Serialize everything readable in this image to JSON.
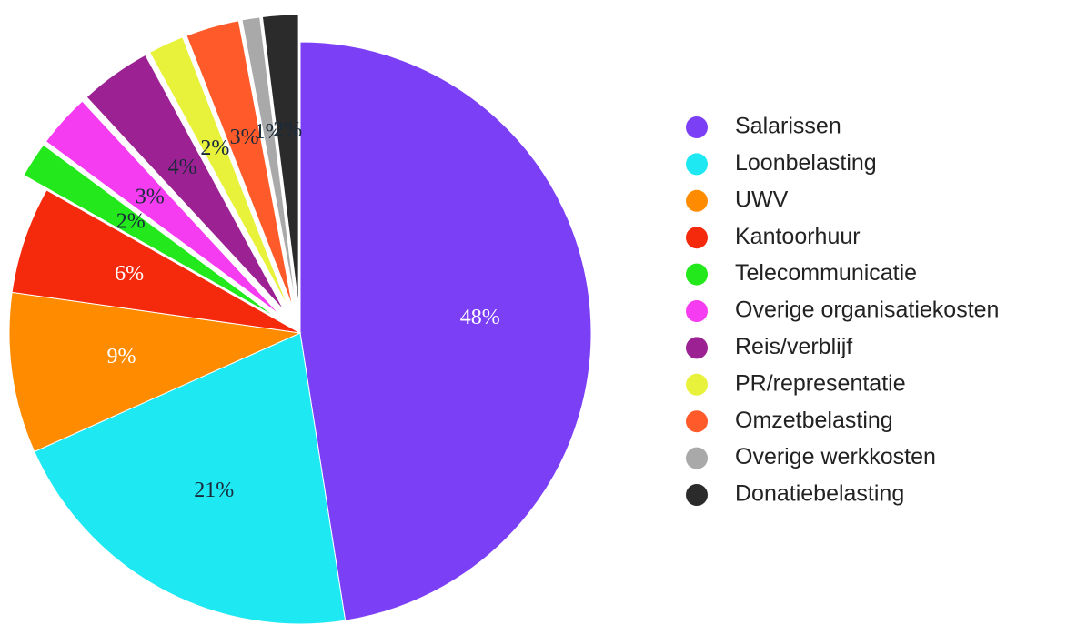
{
  "chart_data": {
    "type": "pie",
    "categories": [
      "Salarissen",
      "Loonbelasting",
      "UWV",
      "Kantoorhuur",
      "Telecommunicatie",
      "Overige organisatiekosten",
      "Reis/verblijf",
      "PR/representatie",
      "Omzetbelasting",
      "Overige werkkosten",
      "Donatiebelasting"
    ],
    "values": [
      48,
      21,
      9,
      6,
      2,
      3,
      4,
      2,
      3,
      1,
      2
    ],
    "value_labels": [
      "48%",
      "21%",
      "9%",
      "6%",
      "2%",
      "3%",
      "4%",
      "2%",
      "3%",
      "1%",
      "2%"
    ],
    "colors": [
      "#7b3ff5",
      "#1ee8f2",
      "#ff8c00",
      "#f5290b",
      "#23e81b",
      "#f53cf0",
      "#9c2192",
      "#e8f23b",
      "#ff5a2a",
      "#a9a9a9",
      "#2b2b2b"
    ],
    "exploded": [
      false,
      false,
      false,
      false,
      true,
      true,
      true,
      true,
      true,
      true,
      true
    ],
    "legend": "right"
  }
}
